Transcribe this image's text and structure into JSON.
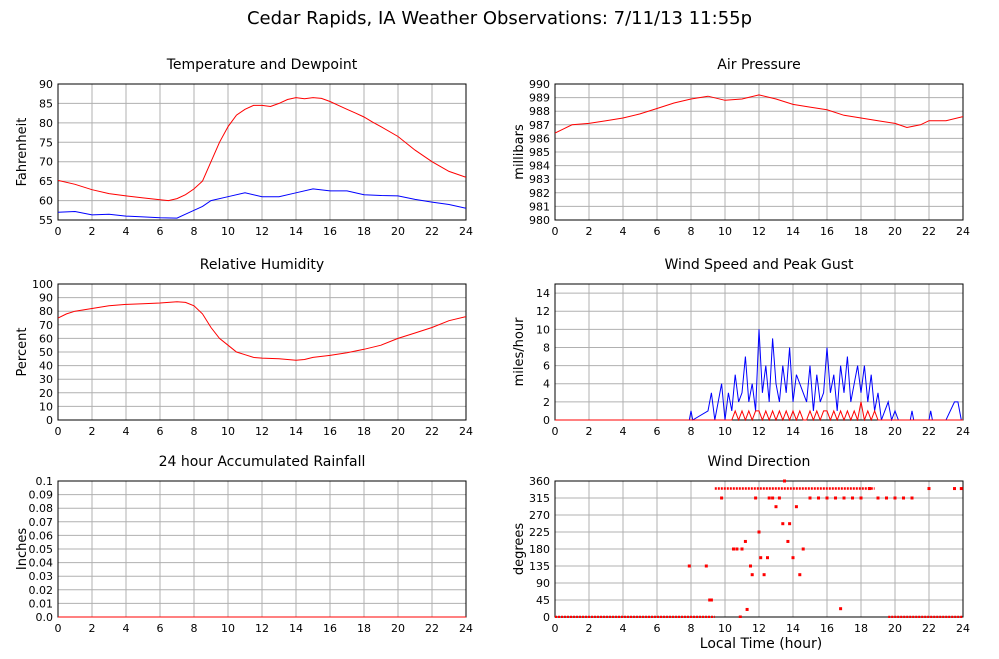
{
  "title": "Cedar Rapids, IA Weather Observations: 7/11/13 11:55p",
  "x_axis_title": "Local Time (hour)",
  "chart_data": [
    {
      "type": "line",
      "title": "Temperature and Dewpoint",
      "ylabel": "Fahrenheit",
      "xlim": [
        0,
        24
      ],
      "ylim": [
        55,
        90
      ],
      "x_ticks": [
        0,
        2,
        4,
        6,
        8,
        10,
        12,
        14,
        16,
        18,
        20,
        22,
        24
      ],
      "y_ticks": [
        55,
        60,
        65,
        70,
        75,
        80,
        85,
        90
      ],
      "grid": true,
      "series": [
        {
          "color": "#ff0000",
          "x": [
            0,
            1,
            2,
            3,
            4,
            5,
            6,
            6.5,
            7,
            7.5,
            8,
            8.5,
            9,
            9.5,
            10,
            10.5,
            11,
            11.5,
            12,
            12.5,
            13,
            13.5,
            14,
            14.5,
            15,
            15.5,
            16,
            16.5,
            17,
            17.5,
            18,
            18.5,
            19,
            20,
            21,
            22,
            23,
            24
          ],
          "y": [
            65.2,
            64.2,
            62.8,
            61.8,
            61.2,
            60.7,
            60.2,
            60,
            60.5,
            61.5,
            63,
            65,
            70,
            75,
            79,
            82,
            83.5,
            84.5,
            84.5,
            84.2,
            85,
            86,
            86.5,
            86.2,
            86.5,
            86.3,
            85.5,
            84.5,
            83.5,
            82.5,
            81.5,
            80.2,
            79,
            76.5,
            73,
            70,
            67.5,
            66
          ]
        },
        {
          "color": "#0000ff",
          "x": [
            0,
            1,
            2,
            3,
            4,
            5,
            6,
            7,
            7.5,
            8,
            8.5,
            9,
            10,
            11,
            12,
            13,
            14,
            15,
            16,
            17,
            18,
            19,
            20,
            21,
            22,
            23,
            24
          ],
          "y": [
            57,
            57.2,
            56.3,
            56.5,
            56,
            55.8,
            55.6,
            55.5,
            56.5,
            57.5,
            58.5,
            60,
            61,
            62,
            61,
            61,
            62,
            63,
            62.5,
            62.5,
            61.5,
            61.3,
            61.2,
            60.3,
            59.6,
            59,
            58
          ]
        }
      ]
    },
    {
      "type": "line",
      "title": "Air Pressure",
      "ylabel": "millibars",
      "xlim": [
        0,
        24
      ],
      "ylim": [
        980,
        990
      ],
      "x_ticks": [
        0,
        2,
        4,
        6,
        8,
        10,
        12,
        14,
        16,
        18,
        20,
        22,
        24
      ],
      "y_ticks": [
        980,
        981,
        982,
        983,
        984,
        985,
        986,
        987,
        988,
        989,
        990
      ],
      "grid": true,
      "series": [
        {
          "color": "#ff0000",
          "x": [
            0,
            0.5,
            1,
            2,
            3,
            4,
            5,
            6,
            7,
            8,
            9,
            10,
            11,
            12,
            13,
            14,
            15,
            16,
            17,
            18,
            19,
            20,
            20.7,
            21.5,
            22,
            23,
            24
          ],
          "y": [
            986.4,
            986.7,
            987,
            987.1,
            987.3,
            987.5,
            987.8,
            988.2,
            988.6,
            988.9,
            989.1,
            988.8,
            988.9,
            989.2,
            988.9,
            988.5,
            988.3,
            988.1,
            987.7,
            987.5,
            987.3,
            987.1,
            986.8,
            987,
            987.3,
            987.3,
            987.6
          ]
        }
      ]
    },
    {
      "type": "line",
      "title": "Relative Humidity",
      "ylabel": "Percent",
      "xlim": [
        0,
        24
      ],
      "ylim": [
        0,
        100
      ],
      "x_ticks": [
        0,
        2,
        4,
        6,
        8,
        10,
        12,
        14,
        16,
        18,
        20,
        22,
        24
      ],
      "y_ticks": [
        0,
        10,
        20,
        30,
        40,
        50,
        60,
        70,
        80,
        90,
        100
      ],
      "grid": true,
      "series": [
        {
          "color": "#ff0000",
          "x": [
            0,
            0.5,
            1,
            2,
            3,
            4,
            5,
            6,
            7,
            7.5,
            8,
            8.5,
            9,
            9.5,
            10,
            10.5,
            11,
            11.5,
            12,
            13,
            14,
            14.5,
            15,
            16,
            17,
            18,
            19,
            20,
            21,
            22,
            23,
            24
          ],
          "y": [
            75,
            78,
            80,
            82,
            84,
            85,
            85.5,
            86,
            87,
            86.5,
            84,
            78,
            68,
            60,
            55,
            50,
            48,
            46,
            45.5,
            45,
            44,
            44.5,
            46,
            47.5,
            49.5,
            52,
            55,
            60,
            64,
            68,
            73,
            76
          ]
        }
      ]
    },
    {
      "type": "line",
      "title": "Wind Speed and Peak Gust",
      "ylabel": "miles/hour",
      "xlim": [
        0,
        24
      ],
      "ylim": [
        0,
        15
      ],
      "x_ticks": [
        0,
        2,
        4,
        6,
        8,
        10,
        12,
        14,
        16,
        18,
        20,
        22,
        24
      ],
      "y_ticks": [
        0,
        2,
        4,
        6,
        8,
        10,
        12,
        14
      ],
      "grid": true,
      "series": [
        {
          "color": "#0000ff",
          "x": [
            0,
            7.9,
            8,
            8.1,
            9,
            9.2,
            9.4,
            9.6,
            9.8,
            10,
            10.2,
            10.4,
            10.6,
            10.8,
            11,
            11.2,
            11.4,
            11.6,
            11.8,
            12,
            12.2,
            12.4,
            12.6,
            12.8,
            13,
            13.2,
            13.4,
            13.6,
            13.8,
            14,
            14.2,
            14.4,
            14.6,
            14.8,
            15,
            15.2,
            15.4,
            15.6,
            15.8,
            16,
            16.2,
            16.4,
            16.6,
            16.8,
            17,
            17.2,
            17.4,
            17.6,
            17.8,
            18,
            18.2,
            18.4,
            18.6,
            18.8,
            19,
            19.2,
            19.4,
            19.6,
            19.8,
            20,
            20.2,
            20.4,
            20.9,
            21,
            21.1,
            22,
            22.1,
            22.2,
            23,
            23.5,
            23.7,
            23.9,
            24
          ],
          "y": [
            0,
            0,
            1,
            0,
            1,
            3,
            0,
            2,
            4,
            0,
            3,
            1,
            5,
            2,
            3,
            7,
            2,
            4,
            1,
            10,
            3,
            6,
            2,
            9,
            4,
            2,
            6,
            3,
            8,
            2,
            5,
            4,
            3,
            2,
            6,
            1,
            5,
            2,
            3,
            8,
            3,
            5,
            1,
            6,
            3,
            7,
            2,
            4,
            6,
            3,
            6,
            2,
            5,
            1,
            3,
            0,
            1,
            2,
            0,
            1,
            0,
            0,
            0,
            1,
            0,
            0,
            1,
            0,
            0,
            2,
            2,
            0,
            0
          ]
        },
        {
          "color": "#ff0000",
          "x": [
            0,
            10.4,
            10.6,
            10.8,
            11,
            11.2,
            11.4,
            11.6,
            11.8,
            12,
            12.2,
            12.4,
            12.6,
            12.8,
            13,
            13.2,
            13.4,
            13.6,
            13.8,
            14,
            14.2,
            14.4,
            14.6,
            14.8,
            15,
            15.2,
            15.4,
            15.6,
            15.8,
            16,
            16.2,
            16.4,
            16.6,
            16.8,
            17,
            17.2,
            17.4,
            17.6,
            17.8,
            18,
            18.2,
            18.4,
            18.6,
            18.8,
            19,
            24
          ],
          "y": [
            0,
            0,
            1,
            0,
            1,
            0,
            1,
            0,
            1,
            1,
            0,
            1,
            0,
            1,
            0,
            1,
            0,
            1,
            0,
            1,
            0,
            1,
            0,
            0,
            1,
            0,
            1,
            0,
            1,
            1,
            0,
            1,
            0,
            1,
            0,
            1,
            0,
            1,
            0,
            2,
            0,
            1,
            0,
            1,
            0,
            0
          ]
        }
      ]
    },
    {
      "type": "line",
      "title": "24 hour Accumulated Rainfall",
      "ylabel": "Inches",
      "xlim": [
        0,
        24
      ],
      "ylim": [
        0,
        0.1
      ],
      "x_ticks": [
        0,
        2,
        4,
        6,
        8,
        10,
        12,
        14,
        16,
        18,
        20,
        22,
        24
      ],
      "y_ticks": [
        "0.0",
        "0.01",
        "0.02",
        "0.03",
        "0.04",
        "0.05",
        "0.06",
        "0.07",
        "0.08",
        "0.09",
        "0.1"
      ],
      "grid": true,
      "series": [
        {
          "color": "#ff0000",
          "x": [
            0,
            24
          ],
          "y": [
            0,
            0
          ]
        }
      ]
    },
    {
      "type": "scatter",
      "title": "Wind Direction",
      "ylabel": "degrees",
      "xlim": [
        0,
        24
      ],
      "ylim": [
        0,
        360
      ],
      "x_ticks": [
        0,
        2,
        4,
        6,
        8,
        10,
        12,
        14,
        16,
        18,
        20,
        22,
        24
      ],
      "y_ticks": [
        0,
        45,
        90,
        135,
        180,
        225,
        270,
        315,
        360
      ],
      "grid": true,
      "segments": [
        {
          "x_start": 0,
          "x_end": 9.4,
          "y": 0
        },
        {
          "x_start": 19.6,
          "x_end": 24,
          "y": 0
        },
        {
          "x_start": 9.4,
          "x_end": 18.8,
          "y": 340
        }
      ],
      "series": [
        {
          "color": "#ff0000",
          "x": [
            7.9,
            8.9,
            9.1,
            9.2,
            9.8,
            10.5,
            10.7,
            10.9,
            11,
            11.2,
            11.3,
            11.5,
            11.6,
            11.8,
            12,
            12.1,
            12.3,
            12.5,
            12.6,
            12.8,
            13,
            13.2,
            13.4,
            13.5,
            13.7,
            13.8,
            14,
            14.2,
            14.4,
            14.6,
            15,
            15.5,
            16,
            16.5,
            16.8,
            17,
            17.5,
            18,
            18.5,
            19,
            19.5,
            20,
            20.5,
            21,
            22,
            23.5,
            23.9
          ],
          "y": [
            135,
            135,
            45,
            45,
            315,
            180,
            180,
            0,
            180,
            200,
            20,
            135,
            112,
            315,
            225,
            157,
            112,
            157,
            315,
            315,
            292,
            315,
            247,
            360,
            200,
            247,
            157,
            292,
            112,
            180,
            315,
            315,
            315,
            315,
            22,
            315,
            315,
            315,
            340,
            315,
            315,
            315,
            315,
            315,
            340,
            340,
            340
          ]
        }
      ]
    }
  ]
}
